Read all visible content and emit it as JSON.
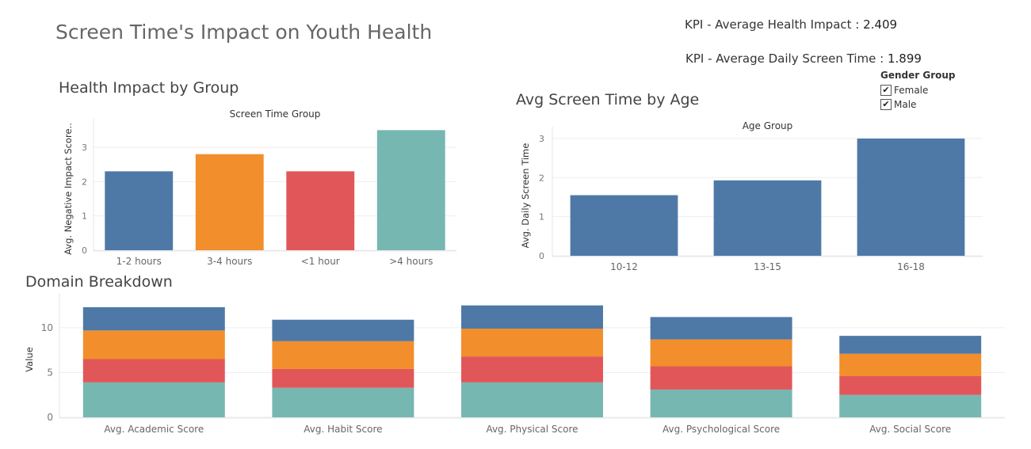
{
  "title": "Screen Time's Impact on Youth Health",
  "kpis": [
    {
      "label": "KPI - Average Health Impact :",
      "value": "2.409"
    },
    {
      "label": "KPI - Average Daily Screen Time :",
      "value": "1.899"
    }
  ],
  "legend": {
    "title": "Gender Group",
    "items": [
      {
        "label": "Female",
        "checked": "✔"
      },
      {
        "label": "Male",
        "checked": "✔"
      }
    ]
  },
  "colors": {
    "blue": "#4e79a7",
    "orange": "#f28e2b",
    "red": "#e15759",
    "teal": "#76b7b2"
  },
  "chart_data": [
    {
      "type": "bar",
      "section_title": "Health Impact by Group",
      "title": "Screen Time Group",
      "ylabel": "Avg. Negative Impact Score..",
      "categories": [
        "1-2 hours",
        "3-4 hours",
        "<1 hour",
        ">4 hours"
      ],
      "values": [
        2.3,
        2.8,
        2.3,
        3.5
      ],
      "colors": [
        "#4e79a7",
        "#f28e2b",
        "#e15759",
        "#76b7b2"
      ],
      "yticks": [
        0,
        1,
        2,
        3
      ],
      "ylim": [
        0,
        3.6
      ]
    },
    {
      "type": "bar",
      "section_title": "Avg Screen Time by Age",
      "title": "Age Group",
      "ylabel": "Avg. Daily Screen Time",
      "categories": [
        "10-12",
        "13-15",
        "16-18"
      ],
      "values": [
        1.55,
        1.93,
        3.0
      ],
      "colors": [
        "#4e79a7",
        "#4e79a7",
        "#4e79a7"
      ],
      "yticks": [
        0,
        1,
        2,
        3
      ],
      "ylim": [
        0,
        3.1
      ]
    },
    {
      "type": "bar",
      "stacked": true,
      "section_title": "Domain Breakdown",
      "ylabel": "Value",
      "categories": [
        "Avg. Academic Score",
        "Avg. Habit Score",
        "Avg. Physical Score",
        "Avg. Psychological Score",
        "Avg. Social Score"
      ],
      "series": [
        {
          "color": "#76b7b2",
          "values": [
            3.9,
            3.3,
            3.9,
            3.1,
            2.5
          ]
        },
        {
          "color": "#e15759",
          "values": [
            2.6,
            2.1,
            2.9,
            2.6,
            2.1
          ]
        },
        {
          "color": "#f28e2b",
          "values": [
            3.2,
            3.1,
            3.1,
            3.0,
            2.5
          ]
        },
        {
          "color": "#4e79a7",
          "values": [
            2.6,
            2.4,
            2.6,
            2.5,
            2.0
          ]
        }
      ],
      "yticks": [
        0,
        5,
        10
      ],
      "ylim": [
        0,
        13
      ]
    }
  ]
}
